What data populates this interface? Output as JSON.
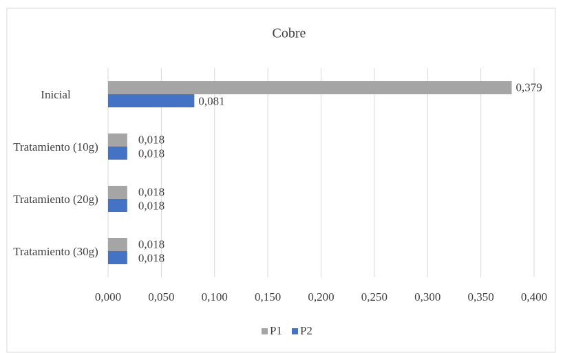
{
  "chart_data": {
    "type": "bar",
    "orientation": "horizontal",
    "title": "Cobre",
    "categories": [
      "Inicial",
      "Tratamiento (10g)",
      "Tratamiento (20g)",
      "Tratamiento (30g)"
    ],
    "series": [
      {
        "name": "P1",
        "color": "#a5a5a5",
        "values": [
          0.379,
          0.018,
          0.018,
          0.018
        ],
        "value_labels": [
          "0,379",
          "0,018",
          "0,018",
          "0,018"
        ]
      },
      {
        "name": "P2",
        "color": "#4472c4",
        "values": [
          0.081,
          0.018,
          0.018,
          0.018
        ],
        "value_labels": [
          "0,081",
          "0,018",
          "0,018",
          "0,018"
        ]
      }
    ],
    "xlim": [
      0,
      0.4
    ],
    "xticks": [
      {
        "value": 0,
        "label": "0,000"
      },
      {
        "value": 0.05,
        "label": "0,050"
      },
      {
        "value": 0.1,
        "label": "0,100"
      },
      {
        "value": 0.15,
        "label": "0,150"
      },
      {
        "value": 0.2,
        "label": "0,200"
      },
      {
        "value": 0.25,
        "label": "0,250"
      },
      {
        "value": 0.3,
        "label": "0,300"
      },
      {
        "value": 0.35,
        "label": "0,350"
      },
      {
        "value": 0.4,
        "label": "0,400"
      }
    ],
    "grid": true,
    "legend": "bottom"
  }
}
